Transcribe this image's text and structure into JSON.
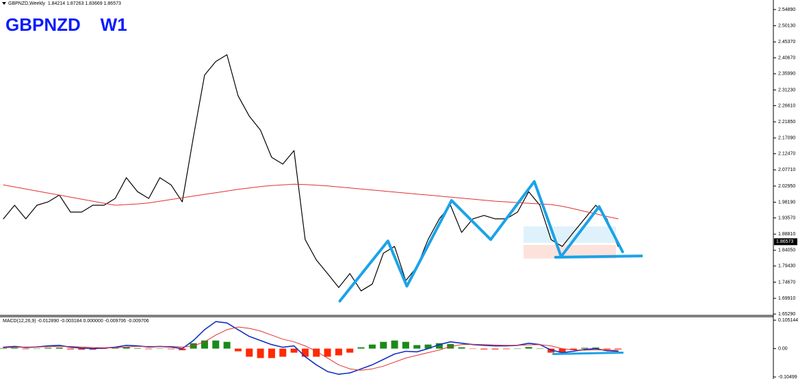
{
  "chart_data": [
    {
      "type": "line",
      "title": "GBPNZD    W1",
      "header": "GBPNZD,Weekly  1.84214 1.87263 1.83669 1.86573",
      "last_price": 1.86573,
      "ylim": [
        1.651,
        2.577
      ],
      "yticks": [
        {
          "value": 2.5489,
          "label": "2.54890"
        },
        {
          "value": 2.5013,
          "label": "2.50130"
        },
        {
          "value": 2.4537,
          "label": "2.45370"
        },
        {
          "value": 2.4067,
          "label": "2.40670"
        },
        {
          "value": 2.3599,
          "label": "2.35990"
        },
        {
          "value": 2.3123,
          "label": "2.31230"
        },
        {
          "value": 2.2661,
          "label": "2.26610"
        },
        {
          "value": 2.2185,
          "label": "2.21850"
        },
        {
          "value": 2.1709,
          "label": "2.17090"
        },
        {
          "value": 2.1247,
          "label": "2.12470"
        },
        {
          "value": 2.0771,
          "label": "2.07710"
        },
        {
          "value": 2.0295,
          "label": "2.02950"
        },
        {
          "value": 1.9819,
          "label": "1.98190"
        },
        {
          "value": 1.9357,
          "label": "1.93570"
        },
        {
          "value": 1.8881,
          "label": "1.88810"
        },
        {
          "value": 1.8405,
          "label": "1.84050"
        },
        {
          "value": 1.7943,
          "label": "1.79430"
        },
        {
          "value": 1.7467,
          "label": "1.74670"
        },
        {
          "value": 1.6991,
          "label": "1.69910"
        },
        {
          "value": 1.6529,
          "label": "1.65290"
        }
      ],
      "series": [
        {
          "color": "#000000",
          "width": 1.2,
          "values": [
            1.933,
            1.973,
            1.933,
            1.973,
            1.983,
            2.003,
            1.953,
            1.953,
            1.973,
            1.973,
            1.993,
            2.054,
            2.013,
            1.993,
            2.054,
            2.033,
            1.983,
            2.174,
            2.356,
            2.396,
            2.416,
            2.295,
            2.235,
            2.194,
            2.114,
            2.094,
            2.134,
            1.872,
            1.812,
            1.772,
            1.731,
            1.772,
            1.721,
            1.741,
            1.832,
            1.852,
            1.751,
            1.792,
            1.872,
            1.933,
            1.973,
            1.893,
            1.933,
            1.943,
            1.933,
            1.933,
            1.953,
            2.013,
            1.973,
            1.872,
            1.852,
            1.893,
            1.933,
            1.973,
            1.933,
            1.852
          ]
        },
        {
          "color": "#e03030",
          "width": 1,
          "values": [
            2.033,
            2.027,
            2.021,
            2.015,
            2.009,
            2.003,
            1.997,
            1.991,
            1.985,
            1.979,
            1.973,
            1.975,
            1.977,
            1.98,
            1.985,
            1.99,
            1.995,
            2.0,
            2.005,
            2.01,
            2.015,
            2.02,
            2.024,
            2.028,
            2.031,
            2.033,
            2.035,
            2.034,
            2.032,
            2.03,
            2.027,
            2.024,
            2.021,
            2.018,
            2.015,
            2.012,
            2.009,
            2.006,
            2.003,
            2.0,
            1.997,
            1.994,
            1.991,
            1.988,
            1.985,
            1.983,
            1.981,
            1.979,
            1.977,
            1.975,
            1.97,
            1.963,
            1.955,
            1.948,
            1.94,
            1.933
          ]
        },
        {
          "color": "#1aa3e8",
          "width": 4,
          "x": [
            30.1,
            34.4,
            36.1,
            40.1,
            43.6,
            47.5,
            49.9,
            53.3,
            55.4
          ],
          "values": [
            1.691,
            1.868,
            1.735,
            1.987,
            1.872,
            2.043,
            1.822,
            1.969,
            1.836
          ]
        },
        {
          "color": "#1aa3e8",
          "width": 4,
          "x": [
            49.4,
            57.1
          ],
          "values": [
            1.82,
            1.824
          ]
        }
      ]
    },
    {
      "type": "line",
      "header": "MACD(12,26,9) -0.012890 -0.003184 0.000000 -0.009706 -0.009706",
      "ylim": [
        -0.11,
        0.118
      ],
      "yticks": [
        {
          "value": 0.105144,
          "label": "0.105144"
        },
        {
          "value": 0,
          "label": "0.00"
        },
        {
          "value": -0.10499,
          "label": "-0.10499"
        }
      ],
      "series": [
        {
          "style": "bar",
          "color": "#1a8a1a",
          "negative_color": "#ff2a00",
          "values": [
            0.002,
            0.003,
            -0.002,
            0,
            0.003,
            0.004,
            -0.003,
            -0.004,
            -0.004,
            -0.001,
            0.002,
            0.006,
            0.002,
            -0.002,
            0,
            -0.002,
            -0.006,
            0.02,
            0.03,
            0.03,
            0.025,
            -0.01,
            -0.03,
            -0.035,
            -0.035,
            -0.03,
            -0.015,
            -0.03,
            -0.03,
            -0.03,
            -0.025,
            -0.015,
            0.005,
            0.015,
            0.025,
            0.03,
            0.025,
            0.013,
            0.015,
            0.02,
            0.017,
            0.005,
            -0.001,
            -0.003,
            -0.003,
            -0.002,
            0,
            0.006,
            0,
            -0.015,
            -0.015,
            -0.005,
            0.003,
            0.004,
            -0.003,
            -0.003
          ]
        },
        {
          "color": "#1030c0",
          "width": 1.6,
          "values": [
            0.005,
            0.008,
            0.004,
            0.006,
            0.01,
            0.012,
            0.005,
            0.002,
            0,
            0.002,
            0.005,
            0.012,
            0.01,
            0.006,
            0.008,
            0.006,
            0,
            0.03,
            0.07,
            0.1,
            0.095,
            0.07,
            0.045,
            0.03,
            0.015,
            0.005,
            0.01,
            -0.03,
            -0.06,
            -0.085,
            -0.095,
            -0.09,
            -0.075,
            -0.06,
            -0.04,
            -0.02,
            -0.01,
            -0.012,
            0,
            0.015,
            0.025,
            0.02,
            0.015,
            0.012,
            0.01,
            0.01,
            0.012,
            0.02,
            0.015,
            -0.005,
            -0.015,
            -0.01,
            -0.003,
            0,
            -0.008,
            -0.01
          ]
        },
        {
          "color": "#e03030",
          "width": 1,
          "values": [
            0.003,
            0.005,
            0.006,
            0.006,
            0.007,
            0.008,
            0.008,
            0.006,
            0.004,
            0.003,
            0.003,
            0.006,
            0.008,
            0.008,
            0.008,
            0.008,
            0.006,
            0.01,
            0.025,
            0.05,
            0.07,
            0.08,
            0.075,
            0.065,
            0.05,
            0.035,
            0.025,
            0.01,
            -0.01,
            -0.035,
            -0.06,
            -0.075,
            -0.08,
            -0.075,
            -0.065,
            -0.05,
            -0.035,
            -0.025,
            -0.015,
            -0.005,
            0.008,
            0.015,
            0.016,
            0.015,
            0.013,
            0.012,
            0.012,
            0.014,
            0.015,
            0.01,
            0,
            -0.005,
            -0.006,
            -0.004,
            -0.005,
            -0.007
          ]
        },
        {
          "color": "#1aa3e8",
          "width": 3,
          "x": [
            49.2,
            55.4
          ],
          "values": [
            -0.02,
            -0.015
          ]
        }
      ]
    }
  ]
}
